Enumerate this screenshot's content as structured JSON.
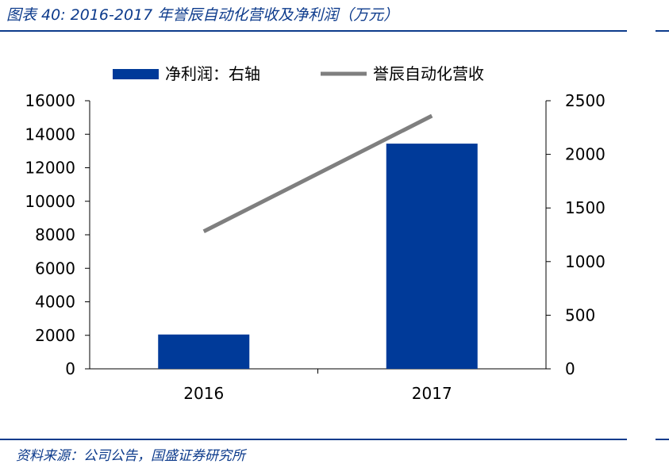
{
  "figure": {
    "title": "图表 40:  2016-2017 年誉辰自动化营收及净利润（万元）",
    "source": "资料来源：公司公告，国盛证券研究所"
  },
  "colors": {
    "brand": "#0d3b8c",
    "bar": "#003a99",
    "line": "#7f7f7f"
  },
  "chart_data": {
    "type": "bar",
    "categories": [
      "2016",
      "2017"
    ],
    "series": [
      {
        "name": "净利润：右轴",
        "type": "bar",
        "axis": "right",
        "values": [
          320,
          2100
        ],
        "color": "#003a99"
      },
      {
        "name": "誉辰自动化营收",
        "type": "line",
        "axis": "left",
        "values": [
          8200,
          15100
        ],
        "color": "#7f7f7f"
      }
    ],
    "left_axis": {
      "ylim": [
        0,
        16000
      ],
      "ticks": [
        "0",
        "2000",
        "4000",
        "6000",
        "8000",
        "10000",
        "12000",
        "14000",
        "16000"
      ]
    },
    "right_axis": {
      "ylim": [
        0,
        2500
      ],
      "ticks": [
        "0",
        "500",
        "1000",
        "1500",
        "2000",
        "2500"
      ]
    },
    "legend": "top",
    "grid": false
  }
}
